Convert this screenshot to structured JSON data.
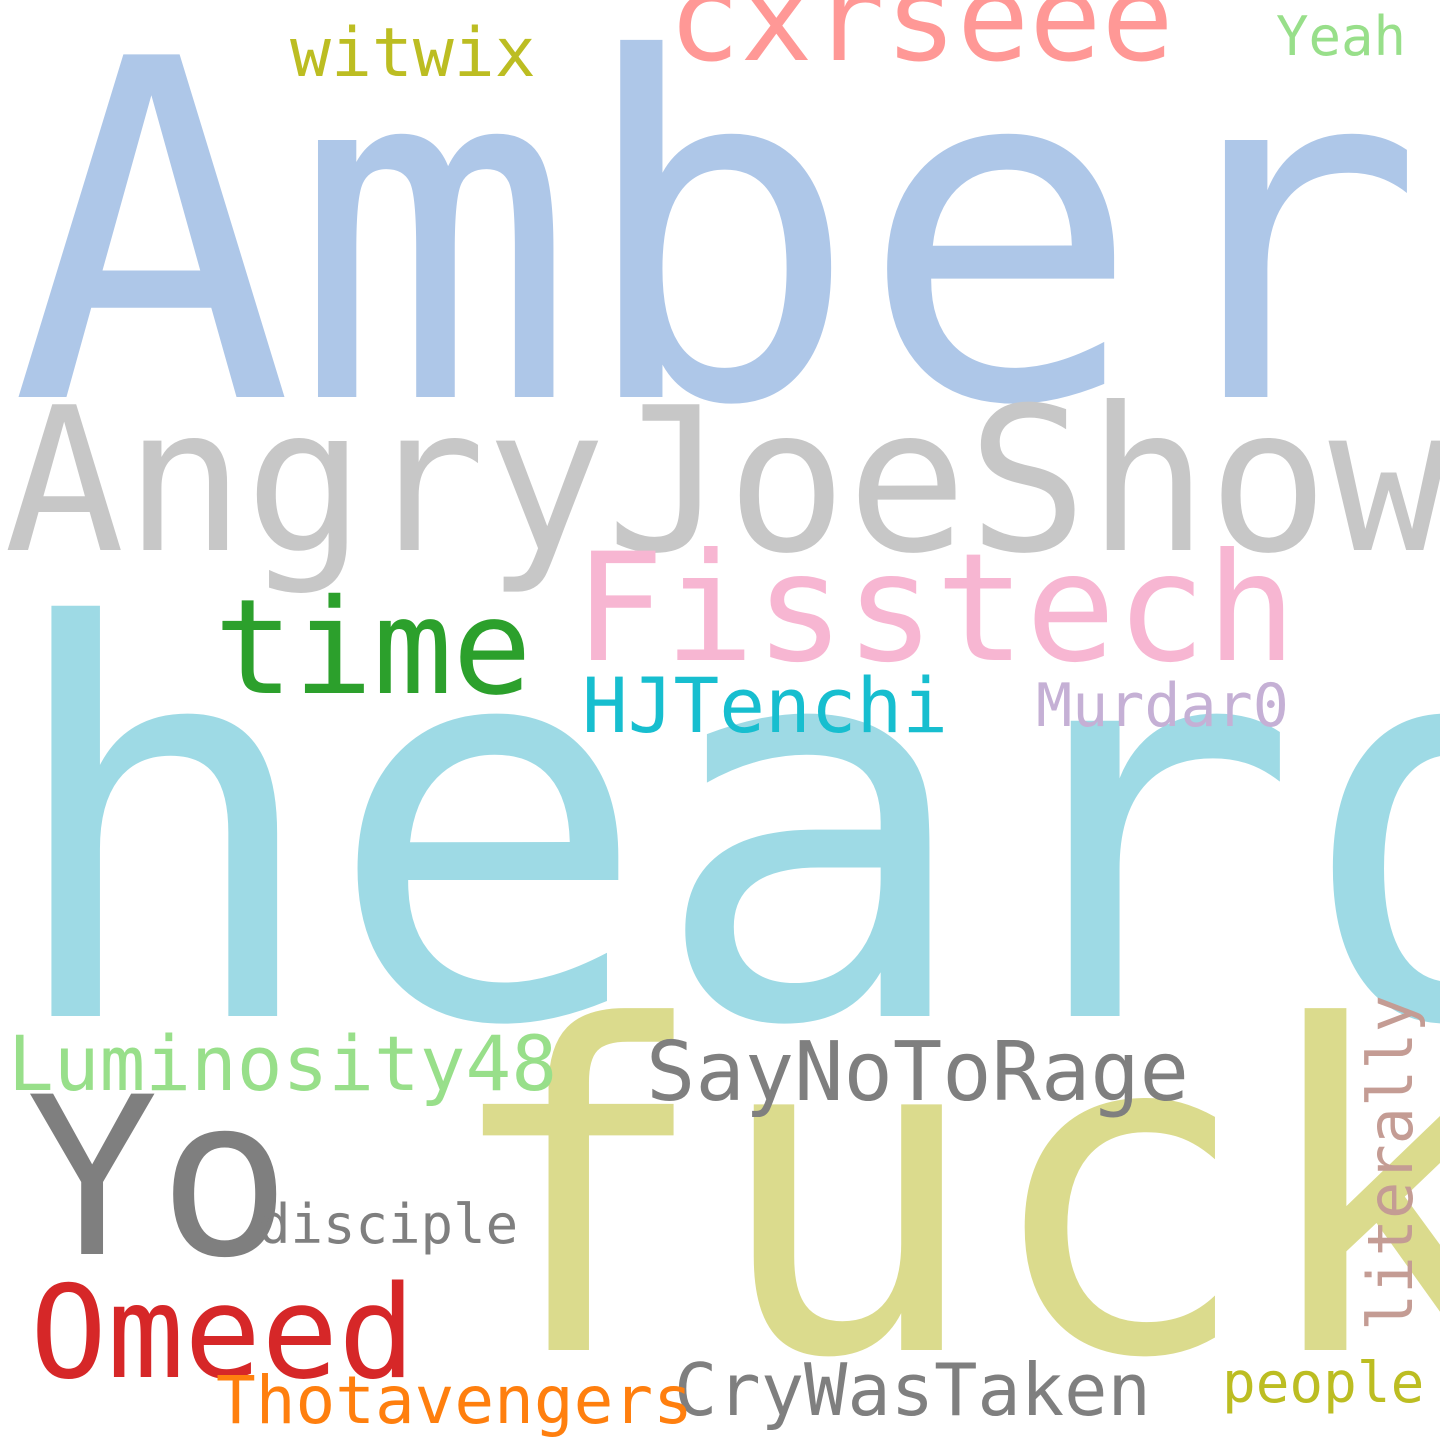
{
  "words": {
    "amber": {
      "text": "Amber",
      "color": "#aec7e8"
    },
    "cxrseee": {
      "text": "cxrseee",
      "color": "#ff9896"
    },
    "witwix": {
      "text": "witwix",
      "color": "#bcbd22"
    },
    "yeah": {
      "text": "Yeah",
      "color": "#98df8a"
    },
    "angry": {
      "text": "AngryJoeShow",
      "color": "#c7c7c7"
    },
    "fisstech": {
      "text": "Fisstech",
      "color": "#f7b6d2"
    },
    "time": {
      "text": "time",
      "color": "#2ca02c"
    },
    "hjtenchi": {
      "text": "HJTenchi",
      "color": "#17becf"
    },
    "murdar": {
      "text": "Murdar0",
      "color": "#c5b0d5"
    },
    "heard": {
      "text": "heard",
      "color": "#9edae5"
    },
    "lumin": {
      "text": "Luminosity48",
      "color": "#98df8a"
    },
    "saynoto": {
      "text": "SayNoToRage",
      "color": "#7f7f7f"
    },
    "yo": {
      "text": "Yo",
      "color": "#7f7f7f"
    },
    "disciple": {
      "text": "disciple",
      "color": "#7f7f7f"
    },
    "fuck": {
      "text": "fuck",
      "color": "#dbdb8d"
    },
    "omeed": {
      "text": "Omeed",
      "color": "#d62728"
    },
    "crywas": {
      "text": "CryWasTaken",
      "color": "#7f7f7f"
    },
    "thot": {
      "text": "Thotavengers",
      "color": "#ff7f0e"
    },
    "people": {
      "text": "people",
      "color": "#bcbd22"
    },
    "literally": {
      "text": "literally",
      "color": "#c49c94"
    }
  }
}
